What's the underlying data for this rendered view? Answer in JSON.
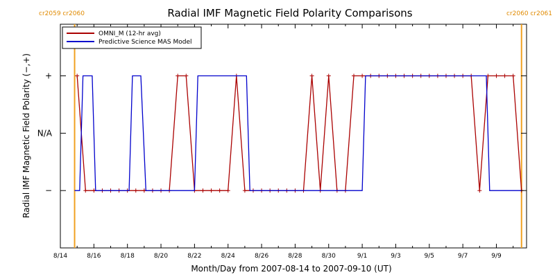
{
  "chart_data": {
    "type": "line",
    "title": "Radial IMF Magnetic Field Polarity Comparisons",
    "xlabel": "Month/Day from 2007-08-14 to 2007-09-10 (UT)",
    "ylabel": "Radial IMF Magnetic Field Polarity (−,+)",
    "xlim": [
      0,
      27.8
    ],
    "ylim": [
      -2.0,
      1.9
    ],
    "x_ticks": [
      {
        "x": 0,
        "label": "8/14"
      },
      {
        "x": 2,
        "label": "8/16"
      },
      {
        "x": 4,
        "label": "8/18"
      },
      {
        "x": 6,
        "label": "8/20"
      },
      {
        "x": 8,
        "label": "8/22"
      },
      {
        "x": 10,
        "label": "8/24"
      },
      {
        "x": 12,
        "label": "8/26"
      },
      {
        "x": 14,
        "label": "8/28"
      },
      {
        "x": 16,
        "label": "8/30"
      },
      {
        "x": 18,
        "label": "9/1"
      },
      {
        "x": 20,
        "label": "9/3"
      },
      {
        "x": 22,
        "label": "9/5"
      },
      {
        "x": 24,
        "label": "9/7"
      },
      {
        "x": 26,
        "label": "9/9"
      }
    ],
    "y_ticks": [
      {
        "y": 1,
        "label": "+"
      },
      {
        "y": 0,
        "label": "N/A"
      },
      {
        "y": -1,
        "label": "−"
      }
    ],
    "carrington_markers": [
      {
        "x": 0.85,
        "label": "cr2059 cr2060",
        "side": "left"
      },
      {
        "x": 27.5,
        "label": "cr2060 cr2061",
        "side": "right"
      }
    ],
    "legend": {
      "placement": "top-left"
    },
    "series": [
      {
        "name": "OMNI_M (12-hr avg)",
        "color": "#aa0000",
        "markers": true,
        "x": [
          1.0,
          1.5,
          2.0,
          2.5,
          3.0,
          3.5,
          4.0,
          4.5,
          5.0,
          5.5,
          6.0,
          6.5,
          7.0,
          7.5,
          8.0,
          8.5,
          9.0,
          9.5,
          10.0,
          10.5,
          11.0,
          11.5,
          12.0,
          12.5,
          13.0,
          13.5,
          14.0,
          14.5,
          15.0,
          15.5,
          16.0,
          16.5,
          17.0,
          17.5,
          18.0,
          18.5,
          19.0,
          19.5,
          20.0,
          20.5,
          21.0,
          21.5,
          22.0,
          22.5,
          23.0,
          23.5,
          24.0,
          24.5,
          25.0,
          25.5,
          26.0,
          26.5,
          27.0,
          27.5
        ],
        "y": [
          1,
          -1,
          -1,
          -1,
          -1,
          -1,
          -1,
          -1,
          -1,
          -1,
          -1,
          -1,
          1,
          1,
          -1,
          -1,
          -1,
          -1,
          -1,
          1,
          -1,
          -1,
          -1,
          -1,
          -1,
          -1,
          -1,
          -1,
          1,
          -1,
          1,
          -1,
          -1,
          1,
          1,
          1,
          1,
          1,
          1,
          1,
          1,
          1,
          1,
          1,
          1,
          1,
          1,
          1,
          -1,
          1,
          1,
          1,
          1,
          -1
        ]
      },
      {
        "name": "Predictive Science MAS Model",
        "color": "#0000cc",
        "markers": false,
        "x": [
          0.85,
          1.15,
          1.35,
          1.9,
          2.1,
          2.6,
          4.1,
          4.3,
          4.8,
          5.1,
          8.0,
          8.2,
          11.1,
          11.3,
          18.0,
          18.2,
          25.4,
          25.6,
          27.5
        ],
        "y": [
          -1,
          -1,
          1,
          1,
          -1,
          -1,
          -1,
          1,
          1,
          -1,
          -1,
          1,
          1,
          -1,
          -1,
          1,
          1,
          -1,
          -1
        ]
      }
    ]
  }
}
